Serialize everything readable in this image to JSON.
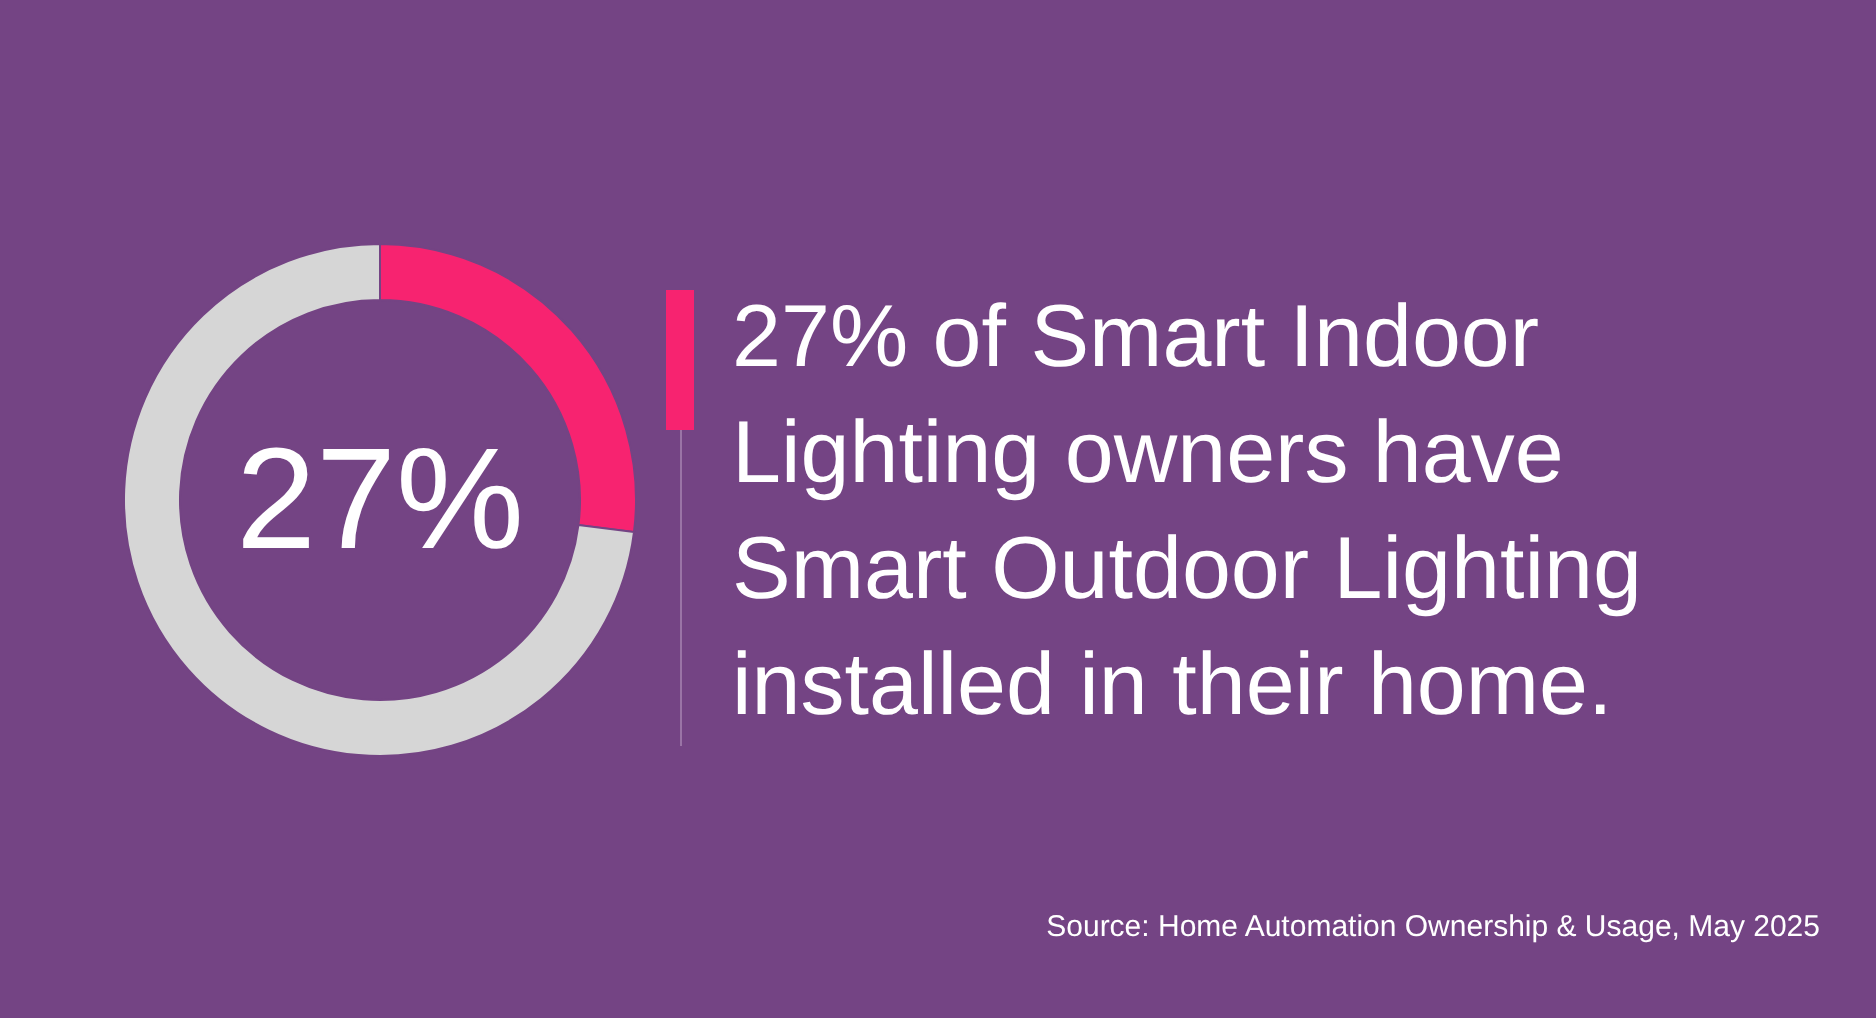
{
  "chart_data": {
    "type": "donut",
    "title": "27% of Smart Indoor Lighting owners have Smart Outdoor Lighting installed in their home.",
    "categories": [
      null,
      null
    ],
    "values": [
      27,
      73
    ],
    "colors": [
      "#f72370",
      "#d6d6d6"
    ],
    "annotations": [
      "27%",
      "Source: Home Automation Ownership & Usage, May 2025"
    ],
    "legend": false
  }
}
